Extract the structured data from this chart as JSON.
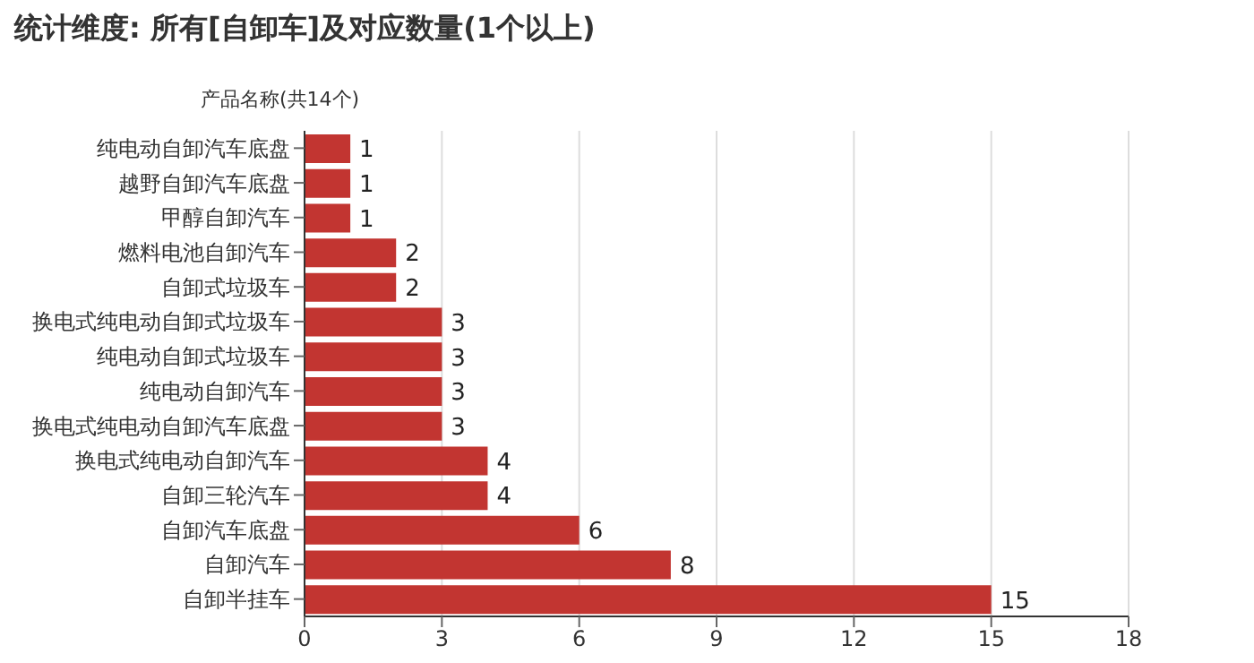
{
  "chart_data": {
    "type": "bar",
    "orientation": "horizontal",
    "title": "统计维度: 所有[自卸车]及对应数量(1个以上)",
    "ylabel": "产品名称(共14个)",
    "categories": [
      "纯电动自卸汽车底盘",
      "越野自卸汽车底盘",
      "甲醇自卸汽车",
      "燃料电池自卸汽车",
      "自卸式垃圾车",
      "换电式纯电动自卸式垃圾车",
      "纯电动自卸式垃圾车",
      "纯电动自卸汽车",
      "换电式纯电动自卸汽车底盘",
      "换电式纯电动自卸汽车",
      "自卸三轮汽车",
      "自卸汽车底盘",
      "自卸汽车",
      "自卸半挂车"
    ],
    "values": [
      1,
      1,
      1,
      2,
      2,
      3,
      3,
      3,
      3,
      4,
      4,
      6,
      8,
      15
    ],
    "color": "#c23531",
    "xlim": [
      0,
      18
    ],
    "xticks": [
      0,
      3,
      6,
      9,
      12,
      15,
      18
    ],
    "grid": "x",
    "data_labels": true
  }
}
